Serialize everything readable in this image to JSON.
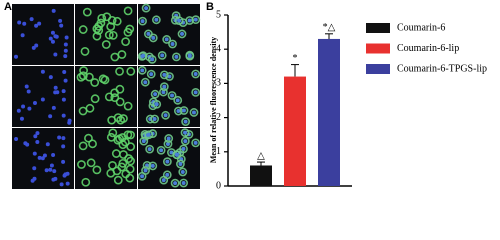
{
  "panel_a": {
    "label": "A"
  },
  "chart_data": {
    "type": "bar",
    "panel_label": "B",
    "y_label": "Mean of relative fluorescence density",
    "series": [
      {
        "name": "Coumarin-6",
        "color": "#111111",
        "values": [
          0.6
        ],
        "errors": [
          0.1
        ],
        "annotation": "△"
      },
      {
        "name": "Coumarin-6-lip",
        "color": "#e8312f",
        "values": [
          3.2
        ],
        "errors": [
          0.35
        ],
        "annotation": "*"
      },
      {
        "name": "Coumarin-6-TPGS-lip",
        "color": "#3b3f9e",
        "values": [
          4.3
        ],
        "errors": [
          0.15
        ],
        "annotation": "*△"
      }
    ],
    "ylim": [
      0,
      5
    ],
    "yticks": [
      0,
      1,
      2,
      3,
      4,
      5
    ],
    "grid": false
  }
}
